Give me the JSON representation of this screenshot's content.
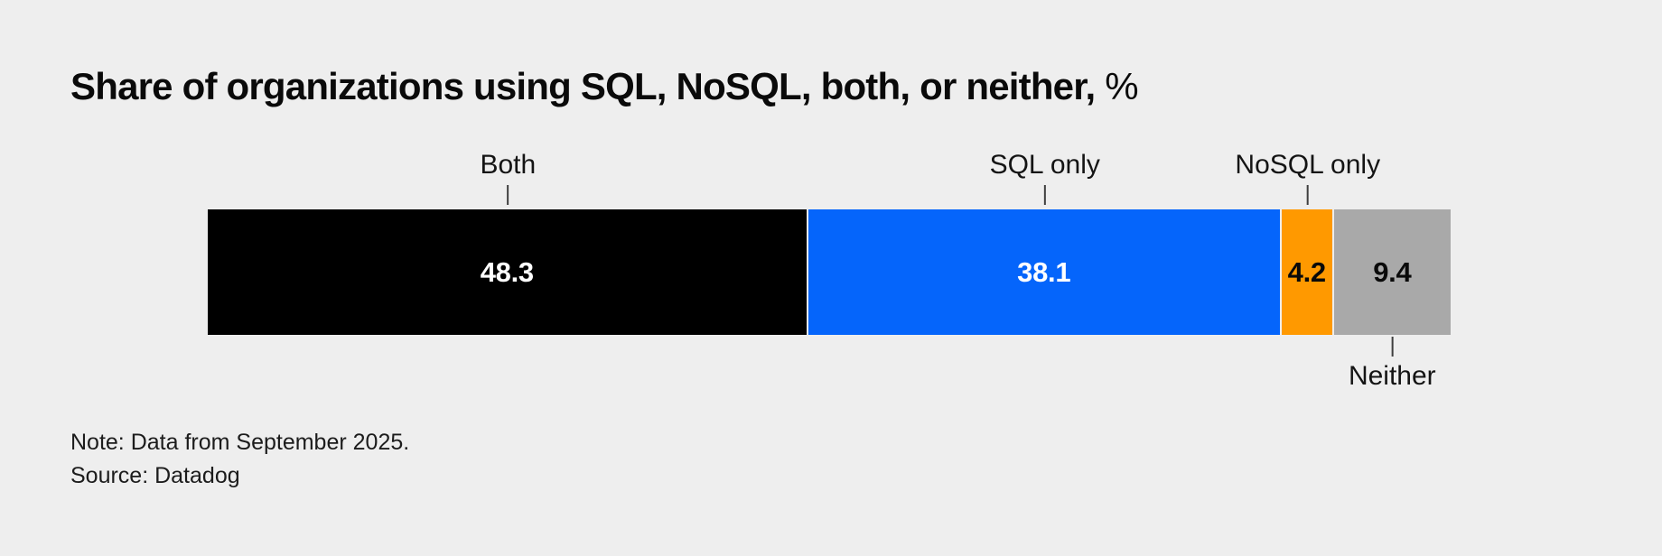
{
  "title": {
    "main": "Share of organizations using SQL, NoSQL, both, or neither,",
    "unit": "%"
  },
  "notes": {
    "note": "Note: Data from September 2025.",
    "source": "Source: Datadog"
  },
  "colors": {
    "background": "#eeeeee",
    "tick": "#3f3f3f",
    "title_text": "#0a0a0a",
    "label_text": "#141414"
  },
  "chart_data": {
    "type": "bar",
    "subtype": "horizontal-stacked-single-bar",
    "title": "Share of organizations using SQL, NoSQL, both, or neither, %",
    "unit": "%",
    "categories": [
      "Both",
      "SQL only",
      "NoSQL only",
      "Neither"
    ],
    "values": [
      48.3,
      38.1,
      4.2,
      9.4
    ],
    "xlim": [
      0,
      100
    ],
    "grid": false,
    "legend": "none (direct labels with leader ticks)",
    "segments": [
      {
        "label": "Both",
        "value": 48.3,
        "color": "#000000",
        "value_text_color": "#ffffff",
        "label_position": "above"
      },
      {
        "label": "SQL only",
        "value": 38.1,
        "color": "#0565fb",
        "value_text_color": "#ffffff",
        "label_position": "above"
      },
      {
        "label": "NoSQL only",
        "value": 4.2,
        "color": "#ff9900",
        "value_text_color": "#0a0a0a",
        "label_position": "above"
      },
      {
        "label": "Neither",
        "value": 9.4,
        "color": "#a9a9a9",
        "value_text_color": "#0a0a0a",
        "label_position": "below"
      }
    ],
    "note": "Note: Data from September 2025.",
    "source": "Source: Datadog"
  }
}
